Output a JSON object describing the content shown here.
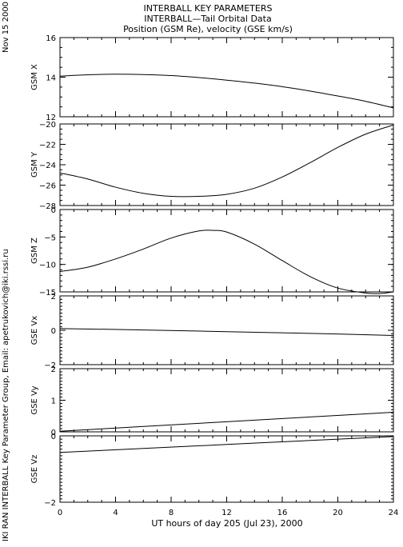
{
  "header": {
    "title_line1": "INTERBALL KEY PARAMETERS",
    "title_line2": "INTERBALL—Tail Orbital Data",
    "title_line3": "Position (GSM Re), velocity (GSE km/s)"
  },
  "side_date": "Nov 15 2000",
  "side_credit": "IKI RAN INTERBALL Key Parameter Group, Email: apetrukovich@iki.rssi.ru",
  "chart_data": {
    "type": "line",
    "xlabel": "UT hours of day 205 (Jul 23), 2000",
    "xlim": [
      0,
      24
    ],
    "xticks": [
      0,
      4,
      8,
      12,
      16,
      20,
      24
    ],
    "grid": false,
    "panels": [
      {
        "ylabel": "GSM X",
        "ylim": [
          12,
          16
        ],
        "yticks": [
          12,
          14,
          16
        ],
        "minor_step": 0.5,
        "x": [
          0,
          2,
          4,
          6,
          8,
          10,
          12,
          14,
          16,
          18,
          20,
          22,
          24
        ],
        "values": [
          14.05,
          14.12,
          14.15,
          14.13,
          14.08,
          13.98,
          13.85,
          13.7,
          13.52,
          13.3,
          13.05,
          12.78,
          12.45
        ]
      },
      {
        "ylabel": "GSM Y",
        "ylim": [
          -28,
          -20
        ],
        "yticks": [
          -28,
          -26,
          -24,
          -22,
          -20
        ],
        "minor_step": 0.5,
        "x": [
          0,
          2,
          4,
          6,
          8,
          10,
          12,
          14,
          16,
          18,
          20,
          22,
          24
        ],
        "values": [
          -24.8,
          -25.4,
          -26.2,
          -26.8,
          -27.1,
          -27.1,
          -26.9,
          -26.3,
          -25.2,
          -23.8,
          -22.3,
          -21.0,
          -20.1
        ]
      },
      {
        "ylabel": "GSM Z",
        "ylim": [
          -15,
          0
        ],
        "yticks": [
          -15,
          -10,
          -5,
          0
        ],
        "minor_step": 1,
        "x": [
          0,
          2,
          4,
          6,
          8,
          10,
          11,
          12,
          14,
          16,
          18,
          20,
          22,
          23,
          24
        ],
        "values": [
          -11.3,
          -10.5,
          -9.0,
          -7.2,
          -5.2,
          -3.9,
          -3.8,
          -4.1,
          -6.3,
          -9.3,
          -12.2,
          -14.3,
          -15.2,
          -15.3,
          -15.0
        ]
      },
      {
        "ylabel": "GSE Vx",
        "ylim": [
          -2,
          2
        ],
        "yticks": [
          -2,
          0,
          2
        ],
        "minor_step": 0.2,
        "x": [
          0,
          6,
          12,
          18,
          24
        ],
        "values": [
          0.1,
          0.02,
          -0.08,
          -0.18,
          -0.3
        ]
      },
      {
        "ylabel": "GSE Vy",
        "ylim": [
          0,
          2
        ],
        "yticks": [
          0,
          1,
          2
        ],
        "minor_step": 0.1,
        "x": [
          0,
          6,
          12,
          18,
          24
        ],
        "values": [
          0.02,
          0.17,
          0.32,
          0.47,
          0.62
        ]
      },
      {
        "ylabel": "GSE Vz",
        "ylim": [
          -2,
          0
        ],
        "yticks": [
          -2,
          0
        ],
        "minor_step": 0.1,
        "x": [
          0,
          6,
          12,
          18,
          24
        ],
        "values": [
          -0.5,
          -0.38,
          -0.26,
          -0.14,
          -0.02
        ]
      }
    ]
  }
}
